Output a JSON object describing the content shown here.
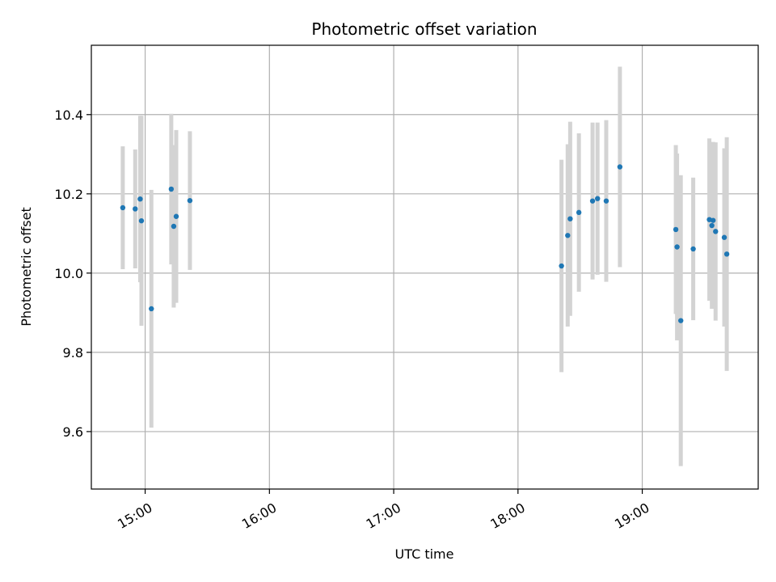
{
  "chart_data": {
    "type": "scatter",
    "title": "Photometric offset variation",
    "xlabel": "UTC time",
    "ylabel": "Photometric offset",
    "x_unit": "hours UTC",
    "xlim": [
      14.567,
      19.933
    ],
    "ylim": [
      9.455,
      10.575
    ],
    "x_ticks": [
      {
        "value": 15,
        "label": "15:00"
      },
      {
        "value": 16,
        "label": "16:00"
      },
      {
        "value": 17,
        "label": "17:00"
      },
      {
        "value": 18,
        "label": "18:00"
      },
      {
        "value": 19,
        "label": "19:00"
      }
    ],
    "y_ticks": [
      {
        "value": 9.6,
        "label": "9.6"
      },
      {
        "value": 9.8,
        "label": "9.8"
      },
      {
        "value": 10.0,
        "label": "10.0"
      },
      {
        "value": 10.2,
        "label": "10.2"
      },
      {
        "value": 10.4,
        "label": "10.4"
      }
    ],
    "grid": true,
    "marker_color": "#1f77b4",
    "errorbar_color": "#d3d3d3",
    "points": [
      {
        "x": 14.82,
        "y": 10.165,
        "err": 0.155
      },
      {
        "x": 14.92,
        "y": 10.162,
        "err": 0.15
      },
      {
        "x": 14.96,
        "y": 10.187,
        "err": 0.21
      },
      {
        "x": 14.97,
        "y": 10.132,
        "err": 0.265
      },
      {
        "x": 15.05,
        "y": 9.91,
        "err": 0.3
      },
      {
        "x": 15.21,
        "y": 10.212,
        "err": 0.19
      },
      {
        "x": 15.23,
        "y": 10.118,
        "err": 0.205
      },
      {
        "x": 15.25,
        "y": 10.143,
        "err": 0.218
      },
      {
        "x": 15.36,
        "y": 10.183,
        "err": 0.175
      },
      {
        "x": 18.35,
        "y": 10.018,
        "err": 0.268
      },
      {
        "x": 18.4,
        "y": 10.095,
        "err": 0.23
      },
      {
        "x": 18.42,
        "y": 10.137,
        "err": 0.245
      },
      {
        "x": 18.49,
        "y": 10.153,
        "err": 0.2
      },
      {
        "x": 18.6,
        "y": 10.182,
        "err": 0.198
      },
      {
        "x": 18.64,
        "y": 10.188,
        "err": 0.192
      },
      {
        "x": 18.71,
        "y": 10.182,
        "err": 0.204
      },
      {
        "x": 18.82,
        "y": 10.268,
        "err": 0.253
      },
      {
        "x": 19.27,
        "y": 10.11,
        "err": 0.213
      },
      {
        "x": 19.28,
        "y": 10.066,
        "err": 0.236
      },
      {
        "x": 19.31,
        "y": 9.88,
        "err": 0.367
      },
      {
        "x": 19.41,
        "y": 10.061,
        "err": 0.18
      },
      {
        "x": 19.54,
        "y": 10.135,
        "err": 0.205
      },
      {
        "x": 19.56,
        "y": 10.12,
        "err": 0.21
      },
      {
        "x": 19.57,
        "y": 10.133,
        "err": 0.198
      },
      {
        "x": 19.59,
        "y": 10.105,
        "err": 0.225
      },
      {
        "x": 19.66,
        "y": 10.09,
        "err": 0.225
      },
      {
        "x": 19.68,
        "y": 10.048,
        "err": 0.295
      }
    ]
  }
}
